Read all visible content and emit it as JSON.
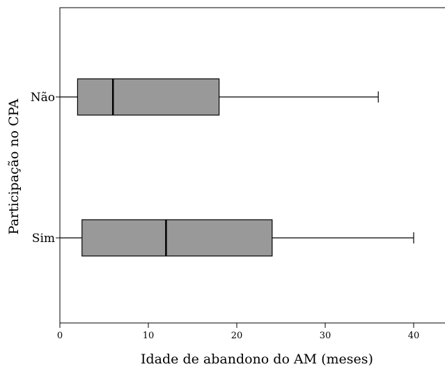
{
  "chart_data": {
    "type": "boxplot",
    "orientation": "horizontal",
    "xlabel": "Idade de abandono do AM (meses)",
    "ylabel": "Participação no CPA",
    "xlim": [
      0,
      43.5
    ],
    "xticks": [
      0,
      10,
      20,
      30,
      40
    ],
    "grid": false,
    "box_color": "#999999",
    "categories": [
      "Não",
      "Sim"
    ],
    "series": [
      {
        "category": "Não",
        "min": 0,
        "q1": 2,
        "median": 6,
        "q3": 18,
        "max": 36
      },
      {
        "category": "Sim",
        "min": 0,
        "q1": 2.5,
        "median": 12,
        "q3": 24,
        "max": 40
      }
    ]
  }
}
